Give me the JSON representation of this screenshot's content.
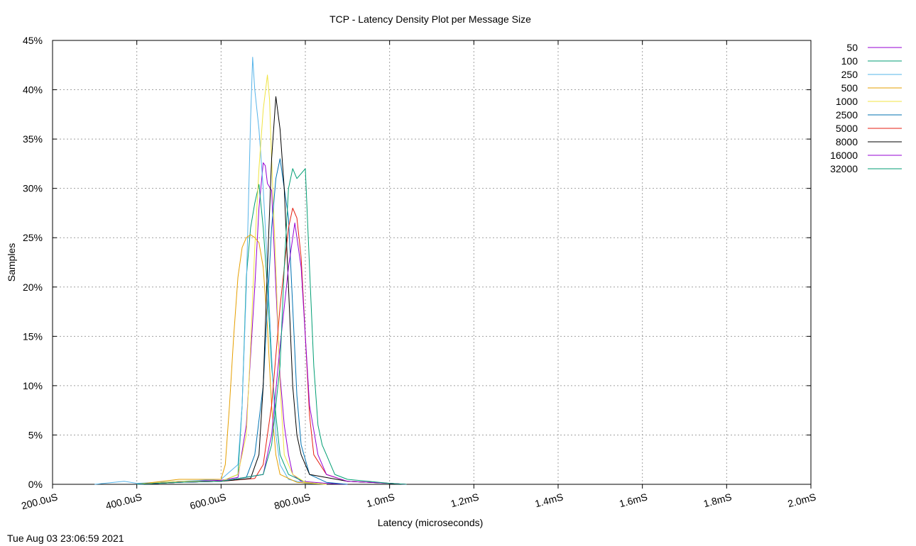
{
  "chart_data": {
    "type": "line",
    "title": "TCP - Latency Density Plot per Message Size",
    "xlabel": "Latency (microseconds)",
    "ylabel": "Samples",
    "xlim": [
      200,
      2000
    ],
    "ylim": [
      0,
      45
    ],
    "x_ticks": [
      200,
      400,
      600,
      800,
      1000,
      1200,
      1400,
      1600,
      1800,
      2000
    ],
    "x_tick_labels": [
      "200.0uS",
      "400.0uS",
      "600.0uS",
      "800.0uS",
      "1.0mS",
      "1.2mS",
      "1.4mS",
      "1.6mS",
      "1.8mS",
      "2.0mS"
    ],
    "y_ticks": [
      0,
      5,
      10,
      15,
      20,
      25,
      30,
      35,
      40,
      45
    ],
    "y_tick_labels": [
      "0%",
      "5%",
      "10%",
      "15%",
      "20%",
      "25%",
      "30%",
      "35%",
      "40%",
      "45%"
    ],
    "grid": true,
    "legend_position": "outside-right",
    "series": [
      {
        "name": "50",
        "color": "#9400d3",
        "points": [
          [
            400,
            0
          ],
          [
            500,
            0.3
          ],
          [
            600,
            0.4
          ],
          [
            640,
            0.7
          ],
          [
            660,
            6
          ],
          [
            680,
            20
          ],
          [
            690,
            28
          ],
          [
            700,
            32.6
          ],
          [
            705,
            32.3
          ],
          [
            710,
            30.5
          ],
          [
            720,
            29.8
          ],
          [
            730,
            20
          ],
          [
            740,
            11
          ],
          [
            750,
            6
          ],
          [
            760,
            3
          ],
          [
            770,
            1
          ],
          [
            790,
            0.3
          ],
          [
            850,
            0.1
          ],
          [
            900,
            0
          ]
        ]
      },
      {
        "name": "100",
        "color": "#009e73",
        "points": [
          [
            400,
            0
          ],
          [
            500,
            0.2
          ],
          [
            600,
            0.3
          ],
          [
            640,
            1
          ],
          [
            650,
            8
          ],
          [
            660,
            21
          ],
          [
            670,
            26
          ],
          [
            680,
            28.5
          ],
          [
            690,
            30.4
          ],
          [
            700,
            26
          ],
          [
            710,
            20
          ],
          [
            720,
            12
          ],
          [
            730,
            7
          ],
          [
            740,
            3
          ],
          [
            760,
            1
          ],
          [
            800,
            0.2
          ],
          [
            850,
            0
          ]
        ]
      },
      {
        "name": "250",
        "color": "#56b4e9",
        "points": [
          [
            300,
            0
          ],
          [
            370,
            0.3
          ],
          [
            400,
            0.1
          ],
          [
            450,
            0.2
          ],
          [
            550,
            0.4
          ],
          [
            600,
            0.5
          ],
          [
            640,
            2
          ],
          [
            650,
            8
          ],
          [
            660,
            20
          ],
          [
            670,
            37
          ],
          [
            675,
            43.3
          ],
          [
            680,
            40
          ],
          [
            690,
            36
          ],
          [
            700,
            30
          ],
          [
            710,
            22
          ],
          [
            720,
            13
          ],
          [
            730,
            5
          ],
          [
            740,
            2
          ],
          [
            760,
            0.5
          ],
          [
            800,
            0.1
          ],
          [
            850,
            0
          ]
        ]
      },
      {
        "name": "500",
        "color": "#e69f00",
        "points": [
          [
            400,
            0
          ],
          [
            500,
            0.5
          ],
          [
            600,
            0.5
          ],
          [
            610,
            2
          ],
          [
            620,
            8
          ],
          [
            630,
            15
          ],
          [
            640,
            21
          ],
          [
            650,
            24
          ],
          [
            660,
            25
          ],
          [
            670,
            25.3
          ],
          [
            680,
            25
          ],
          [
            690,
            24.5
          ],
          [
            700,
            22
          ],
          [
            710,
            16
          ],
          [
            720,
            8
          ],
          [
            730,
            3
          ],
          [
            740,
            1
          ],
          [
            780,
            0.2
          ],
          [
            850,
            0
          ]
        ]
      },
      {
        "name": "1000",
        "color": "#f0e442",
        "points": [
          [
            400,
            0
          ],
          [
            500,
            0.3
          ],
          [
            600,
            0.3
          ],
          [
            640,
            1
          ],
          [
            660,
            5
          ],
          [
            670,
            14
          ],
          [
            680,
            24
          ],
          [
            690,
            32
          ],
          [
            700,
            38
          ],
          [
            710,
            41.5
          ],
          [
            715,
            39
          ],
          [
            720,
            33
          ],
          [
            730,
            22
          ],
          [
            740,
            10
          ],
          [
            750,
            3
          ],
          [
            770,
            1
          ],
          [
            800,
            0.2
          ],
          [
            850,
            0
          ]
        ]
      },
      {
        "name": "2500",
        "color": "#0072b2",
        "points": [
          [
            400,
            0
          ],
          [
            500,
            0.2
          ],
          [
            600,
            0.3
          ],
          [
            660,
            0.7
          ],
          [
            680,
            3
          ],
          [
            700,
            10
          ],
          [
            710,
            18
          ],
          [
            720,
            26
          ],
          [
            730,
            31
          ],
          [
            740,
            33
          ],
          [
            750,
            30
          ],
          [
            760,
            27
          ],
          [
            770,
            18
          ],
          [
            780,
            9
          ],
          [
            790,
            4
          ],
          [
            810,
            1
          ],
          [
            850,
            0.2
          ],
          [
            900,
            0
          ]
        ]
      },
      {
        "name": "5000",
        "color": "#e51e10",
        "points": [
          [
            400,
            0
          ],
          [
            500,
            0.2
          ],
          [
            600,
            0.3
          ],
          [
            680,
            0.6
          ],
          [
            700,
            2
          ],
          [
            720,
            8
          ],
          [
            740,
            18
          ],
          [
            760,
            26
          ],
          [
            770,
            28
          ],
          [
            780,
            27
          ],
          [
            790,
            23
          ],
          [
            800,
            15
          ],
          [
            810,
            7
          ],
          [
            820,
            3
          ],
          [
            850,
            1
          ],
          [
            900,
            0.3
          ],
          [
            1000,
            0.1
          ],
          [
            1040,
            0
          ]
        ]
      },
      {
        "name": "8000",
        "color": "#000000",
        "points": [
          [
            400,
            0
          ],
          [
            500,
            0.2
          ],
          [
            600,
            0.3
          ],
          [
            670,
            0.6
          ],
          [
            690,
            3
          ],
          [
            700,
            10
          ],
          [
            710,
            22
          ],
          [
            720,
            33
          ],
          [
            730,
            39.3
          ],
          [
            740,
            36
          ],
          [
            750,
            30
          ],
          [
            760,
            20
          ],
          [
            770,
            10
          ],
          [
            780,
            5
          ],
          [
            790,
            3
          ],
          [
            810,
            1
          ],
          [
            900,
            0.3
          ],
          [
            1000,
            0.1
          ],
          [
            1040,
            0
          ]
        ]
      },
      {
        "name": "16000",
        "color": "#9400d3",
        "points": [
          [
            400,
            0
          ],
          [
            500,
            0.2
          ],
          [
            600,
            0.3
          ],
          [
            700,
            1
          ],
          [
            720,
            5
          ],
          [
            740,
            14
          ],
          [
            760,
            22
          ],
          [
            775,
            26.5
          ],
          [
            790,
            22
          ],
          [
            800,
            15
          ],
          [
            810,
            8
          ],
          [
            830,
            3
          ],
          [
            850,
            1
          ],
          [
            900,
            0.3
          ],
          [
            1000,
            0.1
          ],
          [
            1040,
            0
          ]
        ]
      },
      {
        "name": "32000",
        "color": "#009e73",
        "points": [
          [
            400,
            0
          ],
          [
            500,
            0.2
          ],
          [
            600,
            0.3
          ],
          [
            700,
            1
          ],
          [
            720,
            4
          ],
          [
            740,
            12
          ],
          [
            750,
            22
          ],
          [
            760,
            30
          ],
          [
            770,
            32
          ],
          [
            780,
            31
          ],
          [
            790,
            31.5
          ],
          [
            800,
            32
          ],
          [
            810,
            22
          ],
          [
            820,
            12
          ],
          [
            830,
            6
          ],
          [
            840,
            4
          ],
          [
            850,
            3
          ],
          [
            870,
            1
          ],
          [
            900,
            0.5
          ],
          [
            1000,
            0.1
          ],
          [
            1040,
            0
          ]
        ]
      }
    ]
  },
  "timestamp": "Tue Aug 03 23:06:59 2021"
}
